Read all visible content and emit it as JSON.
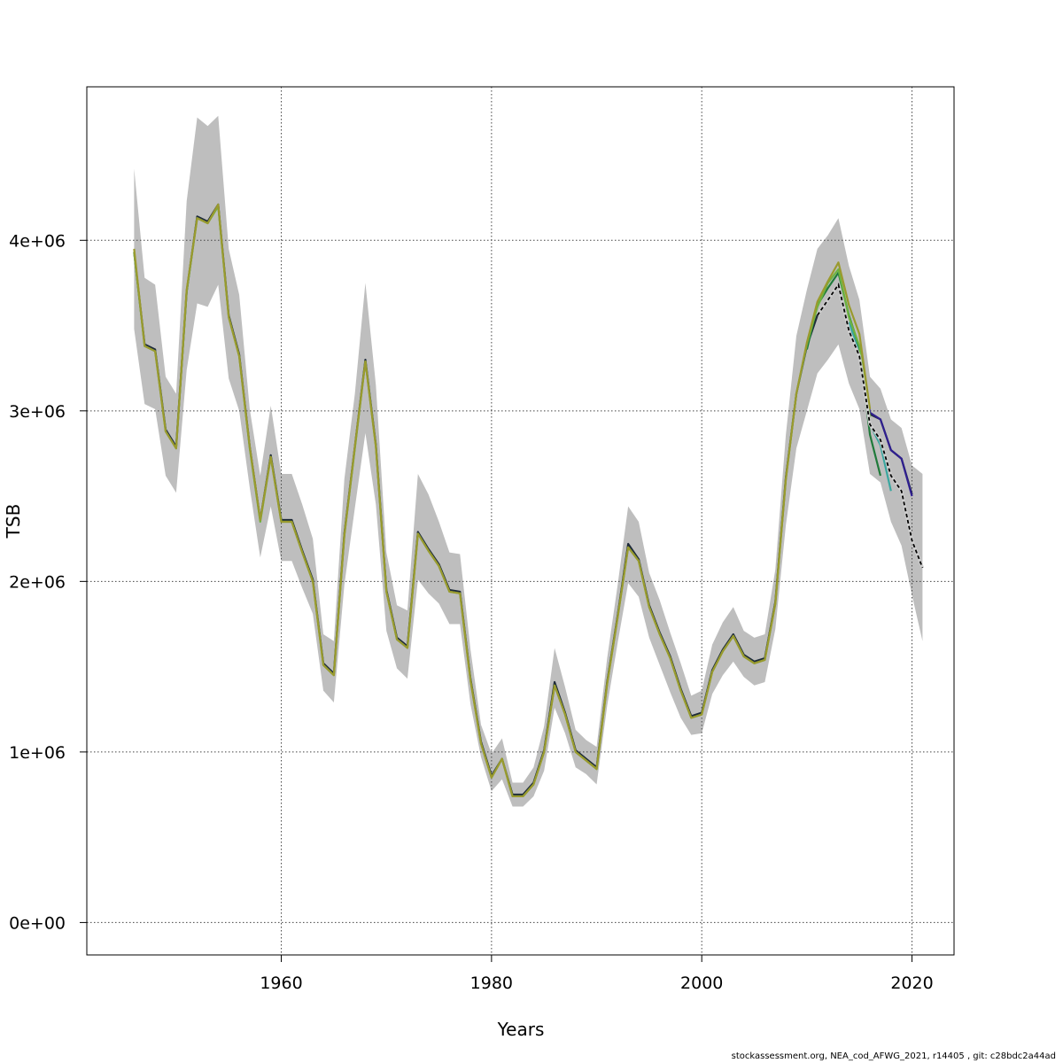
{
  "chart_data": {
    "type": "line",
    "title": "",
    "xlabel": "Years",
    "ylabel": "TSB",
    "xlim": [
      1941.5,
      2024
    ],
    "ylim": [
      -190000,
      4900000
    ],
    "x_ticks": [
      1960,
      1980,
      2000,
      2020
    ],
    "x_tick_labels": [
      "1960",
      "1980",
      "2000",
      "2020"
    ],
    "y_ticks": [
      0,
      1000000,
      2000000,
      3000000,
      4000000
    ],
    "y_tick_labels": [
      "0e+00",
      "1e+06",
      "2e+06",
      "3e+06",
      "4e+06"
    ],
    "grid": true,
    "legend": "none",
    "band": {
      "name": "",
      "color": "#bebebe",
      "x": [
        1946,
        1947,
        1948,
        1949,
        1950,
        1951,
        1952,
        1953,
        1954,
        1955,
        1956,
        1957,
        1958,
        1959,
        1960,
        1961,
        1962,
        1963,
        1964,
        1965,
        1966,
        1967,
        1968,
        1969,
        1970,
        1971,
        1972,
        1973,
        1974,
        1975,
        1976,
        1977,
        1978,
        1979,
        1980,
        1981,
        1982,
        1983,
        1984,
        1985,
        1986,
        1987,
        1988,
        1989,
        1990,
        1991,
        1992,
        1993,
        1994,
        1995,
        1996,
        1997,
        1998,
        1999,
        2000,
        2001,
        2002,
        2003,
        2004,
        2005,
        2006,
        2007,
        2008,
        2009,
        2010,
        2011,
        2012,
        2013,
        2014,
        2015,
        2016,
        2017,
        2018,
        2019,
        2020,
        2021
      ],
      "upper": [
        4420000,
        3780000,
        3740000,
        3200000,
        3100000,
        4230000,
        4720000,
        4670000,
        4730000,
        3950000,
        3680000,
        3010000,
        2620000,
        3030000,
        2630000,
        2630000,
        2450000,
        2250000,
        1690000,
        1650000,
        2600000,
        3100000,
        3750000,
        3150000,
        2170000,
        1860000,
        1830000,
        2630000,
        2510000,
        2350000,
        2170000,
        2160000,
        1600000,
        1160000,
        990000,
        1080000,
        820000,
        820000,
        910000,
        1150000,
        1610000,
        1380000,
        1130000,
        1070000,
        1030000,
        1550000,
        1980000,
        2440000,
        2350000,
        2050000,
        1890000,
        1700000,
        1520000,
        1330000,
        1360000,
        1630000,
        1760000,
        1850000,
        1710000,
        1670000,
        1690000,
        2070000,
        2860000,
        3440000,
        3710000,
        3950000,
        4030000,
        4130000,
        3850000,
        3650000,
        3200000,
        3130000,
        2950000,
        2900000,
        2680000,
        2630000
      ],
      "lower": [
        3480000,
        3040000,
        3010000,
        2620000,
        2520000,
        3240000,
        3630000,
        3610000,
        3740000,
        3190000,
        3000000,
        2550000,
        2140000,
        2440000,
        2120000,
        2120000,
        1960000,
        1810000,
        1360000,
        1290000,
        1980000,
        2430000,
        2870000,
        2450000,
        1710000,
        1490000,
        1430000,
        2010000,
        1930000,
        1870000,
        1750000,
        1750000,
        1280000,
        970000,
        770000,
        840000,
        680000,
        680000,
        740000,
        890000,
        1260000,
        1110000,
        910000,
        870000,
        810000,
        1270000,
        1640000,
        1990000,
        1910000,
        1670000,
        1510000,
        1350000,
        1200000,
        1100000,
        1110000,
        1340000,
        1450000,
        1530000,
        1440000,
        1390000,
        1410000,
        1720000,
        2330000,
        2780000,
        3000000,
        3220000,
        3300000,
        3390000,
        3160000,
        3010000,
        2630000,
        2580000,
        2350000,
        2210000,
        1920000,
        1650000
      ]
    },
    "series": [
      {
        "name": "",
        "color": "#1e2a3a",
        "dashed": false,
        "x": [
          1946,
          1947,
          1948,
          1949,
          1950,
          1951,
          1952,
          1953,
          1954,
          1955,
          1956,
          1957,
          1958,
          1959,
          1960,
          1961,
          1962,
          1963,
          1964,
          1965,
          1966,
          1967,
          1968,
          1969,
          1970,
          1971,
          1972,
          1973,
          1974,
          1975,
          1976,
          1977,
          1978,
          1979,
          1980,
          1981,
          1982,
          1983,
          1984,
          1985,
          1986,
          1987,
          1988,
          1989,
          1990,
          1991,
          1992,
          1993,
          1994,
          1995,
          1996,
          1997,
          1998,
          1999,
          2000,
          2001,
          2002,
          2003,
          2004,
          2005,
          2006,
          2007,
          2008,
          2009,
          2010,
          2011,
          2012,
          2013,
          2014,
          2015,
          2016,
          2017,
          2018,
          2019,
          2020
        ],
        "y": [
          3930000,
          3390000,
          3360000,
          2890000,
          2790000,
          3700000,
          4140000,
          4110000,
          4210000,
          3560000,
          3330000,
          2790000,
          2360000,
          2740000,
          2360000,
          2360000,
          2180000,
          2010000,
          1520000,
          1460000,
          2280000,
          2790000,
          3300000,
          2800000,
          1950000,
          1670000,
          1620000,
          2290000,
          2190000,
          2100000,
          1950000,
          1940000,
          1430000,
          1060000,
          860000,
          960000,
          750000,
          750000,
          820000,
          1010000,
          1410000,
          1230000,
          1010000,
          960000,
          910000,
          1410000,
          1800000,
          2220000,
          2130000,
          1860000,
          1700000,
          1560000,
          1370000,
          1210000,
          1230000,
          1480000,
          1600000,
          1690000,
          1570000,
          1530000,
          1550000,
          1880000,
          2610000,
          3100000,
          3380000,
          3560000,
          3650000,
          3740000,
          3470000,
          3320000,
          2980000,
          2950000,
          2770000,
          2720000,
          2510000
        ]
      },
      {
        "name": "",
        "color": "#2f1f8f",
        "dashed": false,
        "x": [
          2015,
          2016,
          2017,
          2018,
          2019,
          2020
        ],
        "y": [
          3330000,
          2990000,
          2950000,
          2770000,
          2720000,
          2500000
        ]
      },
      {
        "name": "",
        "color": "#3aa7a0",
        "dashed": false,
        "x": [
          2014,
          2015,
          2016,
          2017,
          2018
        ],
        "y": [
          3520000,
          3340000,
          2920000,
          2800000,
          2530000
        ]
      },
      {
        "name": "",
        "color": "#1f7a3a",
        "dashed": false,
        "x": [
          2010,
          2011,
          2012,
          2013,
          2014,
          2015,
          2016,
          2017
        ],
        "y": [
          3360000,
          3620000,
          3720000,
          3810000,
          3560000,
          3370000,
          2860000,
          2620000
        ]
      },
      {
        "name": "",
        "color": "#6db33f",
        "dashed": false,
        "x": [
          1946,
          1947,
          1948,
          1949,
          1950,
          1951,
          1952,
          1953,
          1954,
          1955,
          1956,
          1957,
          1958,
          1959,
          1960,
          1961,
          1962,
          1963,
          1964,
          1965,
          1966,
          1967,
          1968,
          1969,
          1970,
          1971,
          1972,
          1973,
          1974,
          1975,
          1976,
          1977,
          1978,
          1979,
          1980,
          1981,
          1982,
          1983,
          1984,
          1985,
          1986,
          1987,
          1988,
          1989,
          1990,
          1991,
          1992,
          1993,
          1994,
          1995,
          1996,
          1997,
          1998,
          1999,
          2000,
          2001,
          2002,
          2003,
          2004,
          2005,
          2006,
          2007,
          2008,
          2009,
          2010,
          2011,
          2012,
          2013,
          2014,
          2015,
          2016
        ],
        "y": [
          3930000,
          3380000,
          3350000,
          2880000,
          2780000,
          3700000,
          4130000,
          4100000,
          4200000,
          3550000,
          3320000,
          2780000,
          2350000,
          2730000,
          2350000,
          2350000,
          2170000,
          2000000,
          1510000,
          1450000,
          2270000,
          2780000,
          3290000,
          2790000,
          1940000,
          1660000,
          1610000,
          2280000,
          2180000,
          2090000,
          1940000,
          1930000,
          1420000,
          1050000,
          850000,
          960000,
          740000,
          740000,
          810000,
          1000000,
          1390000,
          1220000,
          1000000,
          950000,
          900000,
          1400000,
          1790000,
          2200000,
          2120000,
          1850000,
          1690000,
          1550000,
          1360000,
          1200000,
          1220000,
          1470000,
          1590000,
          1680000,
          1560000,
          1520000,
          1540000,
          1870000,
          2600000,
          3100000,
          3390000,
          3610000,
          3750000,
          3830000,
          3550000,
          3380000,
          2960000
        ]
      },
      {
        "name": "",
        "color": "#9a9a2e",
        "dashed": false,
        "x": [
          1946,
          1947,
          1948,
          1949,
          1950,
          1951,
          1952,
          1953,
          1954,
          1955,
          1956,
          1957,
          1958,
          1959,
          1960,
          1961,
          1962,
          1963,
          1964,
          1965,
          1966,
          1967,
          1968,
          1969,
          1970,
          1971,
          1972,
          1973,
          1974,
          1975,
          1976,
          1977,
          1978,
          1979,
          1980,
          1981,
          1982,
          1983,
          1984,
          1985,
          1986,
          1987,
          1988,
          1989,
          1990,
          1991,
          1992,
          1993,
          1994,
          1995,
          1996,
          1997,
          1998,
          1999,
          2000,
          2001,
          2002,
          2003,
          2004,
          2005,
          2006,
          2007,
          2008,
          2009,
          2010,
          2011,
          2012,
          2013,
          2014,
          2015,
          2016
        ],
        "y": [
          3950000,
          3380000,
          3350000,
          2880000,
          2780000,
          3710000,
          4130000,
          4100000,
          4210000,
          3550000,
          3320000,
          2790000,
          2360000,
          2730000,
          2350000,
          2350000,
          2170000,
          2000000,
          1510000,
          1450000,
          2270000,
          2790000,
          3290000,
          2790000,
          1940000,
          1660000,
          1610000,
          2280000,
          2180000,
          2090000,
          1940000,
          1930000,
          1420000,
          1050000,
          850000,
          960000,
          740000,
          740000,
          810000,
          1000000,
          1390000,
          1220000,
          1000000,
          950000,
          900000,
          1400000,
          1790000,
          2200000,
          2120000,
          1850000,
          1690000,
          1550000,
          1360000,
          1200000,
          1220000,
          1470000,
          1590000,
          1680000,
          1560000,
          1520000,
          1540000,
          1870000,
          2600000,
          3100000,
          3400000,
          3640000,
          3760000,
          3870000,
          3620000,
          3450000,
          3010000
        ]
      },
      {
        "name": "",
        "color": "#000000",
        "dashed": true,
        "x": [
          2011,
          2012,
          2013,
          2014,
          2015,
          2016,
          2017,
          2018,
          2019,
          2020,
          2021
        ],
        "y": [
          3560000,
          3650000,
          3740000,
          3470000,
          3320000,
          2920000,
          2830000,
          2620000,
          2530000,
          2240000,
          2080000
        ]
      }
    ]
  },
  "footer": "stockassessment.org, NEA_cod_AFWG_2021, r14405 , git: c28bdc2a44ad"
}
